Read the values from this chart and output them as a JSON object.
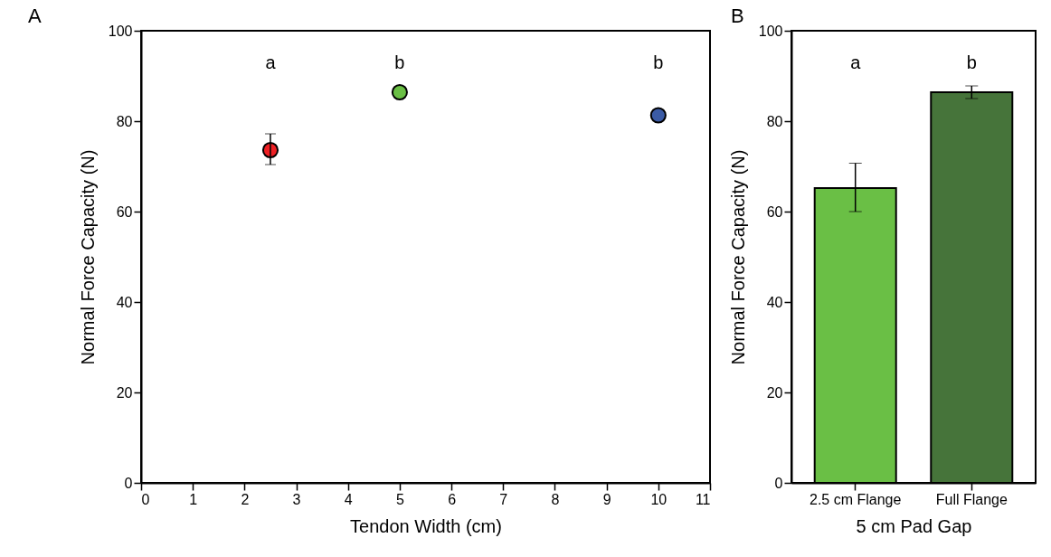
{
  "chart_data": [
    {
      "type": "scatter",
      "title": "A",
      "xlabel": "Tendon Width (cm)",
      "ylabel": "Normal Force Capacity (N)",
      "x": [
        2.5,
        5,
        10
      ],
      "values": [
        73.6,
        86.4,
        81.3
      ],
      "colors": [
        "#ee2024",
        "#6abf45",
        "#3b5ba5"
      ],
      "errors": [
        [
          70.4,
          77.2
        ],
        null,
        null
      ],
      "marker": "circle",
      "xlim": [
        0,
        11
      ],
      "xticks": [
        0,
        1,
        2,
        3,
        4,
        5,
        6,
        7,
        8,
        9,
        10,
        11
      ],
      "ylim": [
        0,
        100
      ],
      "yticks": [
        0,
        20,
        40,
        60,
        80,
        100
      ],
      "grid": false,
      "annotations": [
        "a",
        "b",
        "b"
      ]
    },
    {
      "type": "bar",
      "title": "B",
      "xlabel": "5 cm Pad Gap",
      "ylabel": "Normal Force Capacity (N)",
      "categories": [
        "2.5 cm Flange",
        "Full Flange"
      ],
      "values": [
        65.2,
        86.4
      ],
      "colors": [
        "#6abf45",
        "#46743a"
      ],
      "errors": [
        [
          60,
          70.7
        ],
        [
          85,
          87.8
        ]
      ],
      "ylim": [
        0,
        100
      ],
      "yticks": [
        0,
        20,
        40,
        60,
        80,
        100
      ],
      "grid": false,
      "annotations": [
        "a",
        "b"
      ]
    }
  ]
}
